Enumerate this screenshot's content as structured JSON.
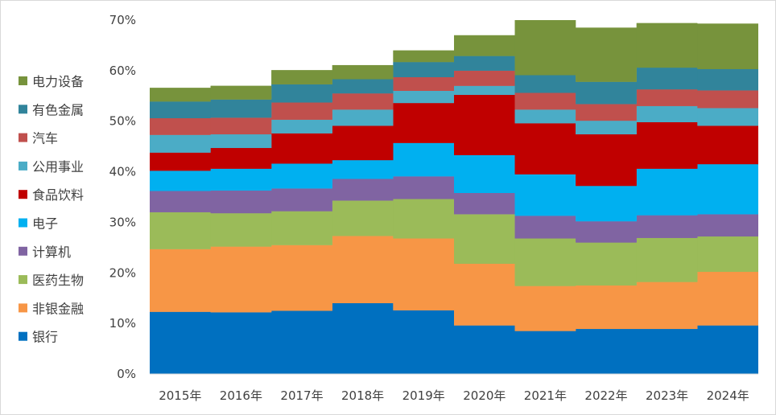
{
  "chart_data": {
    "type": "area",
    "stacked": true,
    "step": true,
    "title": "",
    "xlabel": "",
    "ylabel": "",
    "ylim": [
      0,
      0.7
    ],
    "y_ticks": [
      {
        "value": 0,
        "label": "0%"
      },
      {
        "value": 0.1,
        "label": "10%"
      },
      {
        "value": 0.2,
        "label": "20%"
      },
      {
        "value": 0.3,
        "label": "30%"
      },
      {
        "value": 0.4,
        "label": "40%"
      },
      {
        "value": 0.5,
        "label": "50%"
      },
      {
        "value": 0.6,
        "label": "60%"
      },
      {
        "value": 0.7,
        "label": "70%"
      }
    ],
    "categories": [
      "2015年",
      "2016年",
      "2017年",
      "2018年",
      "2019年",
      "2020年",
      "2021年",
      "2022年",
      "2023年",
      "2024年"
    ],
    "grid": false,
    "legend_position": "left",
    "series": [
      {
        "name": "银行",
        "color": "#0070c0",
        "values": [
          0.123,
          0.122,
          0.125,
          0.14,
          0.126,
          0.096,
          0.085,
          0.089,
          0.089,
          0.096
        ]
      },
      {
        "name": "非银金融",
        "color": "#f79646",
        "values": [
          0.124,
          0.13,
          0.13,
          0.133,
          0.142,
          0.122,
          0.089,
          0.086,
          0.093,
          0.106
        ]
      },
      {
        "name": "医药生物",
        "color": "#9bbb59",
        "values": [
          0.073,
          0.066,
          0.067,
          0.07,
          0.078,
          0.098,
          0.094,
          0.085,
          0.087,
          0.07
        ]
      },
      {
        "name": "计算机",
        "color": "#8064a2",
        "values": [
          0.042,
          0.045,
          0.045,
          0.043,
          0.045,
          0.042,
          0.045,
          0.042,
          0.045,
          0.044
        ]
      },
      {
        "name": "电子",
        "color": "#00b0f0",
        "values": [
          0.04,
          0.043,
          0.049,
          0.037,
          0.066,
          0.075,
          0.082,
          0.07,
          0.092,
          0.099
        ]
      },
      {
        "name": "食品饮料",
        "color": "#c00000",
        "values": [
          0.036,
          0.041,
          0.06,
          0.068,
          0.079,
          0.119,
          0.101,
          0.102,
          0.092,
          0.076
        ]
      },
      {
        "name": "公用事业",
        "color": "#4bacc6",
        "values": [
          0.035,
          0.027,
          0.027,
          0.032,
          0.024,
          0.018,
          0.027,
          0.027,
          0.032,
          0.035
        ]
      },
      {
        "name": "汽车",
        "color": "#c0504d",
        "values": [
          0.033,
          0.033,
          0.034,
          0.032,
          0.027,
          0.03,
          0.033,
          0.033,
          0.033,
          0.035
        ]
      },
      {
        "name": "有色金属",
        "color": "#31849b",
        "values": [
          0.033,
          0.036,
          0.036,
          0.028,
          0.03,
          0.029,
          0.035,
          0.044,
          0.043,
          0.042
        ]
      },
      {
        "name": "电力设备",
        "color": "#77933c",
        "values": [
          0.027,
          0.027,
          0.028,
          0.028,
          0.023,
          0.041,
          0.109,
          0.107,
          0.088,
          0.09
        ]
      }
    ]
  }
}
